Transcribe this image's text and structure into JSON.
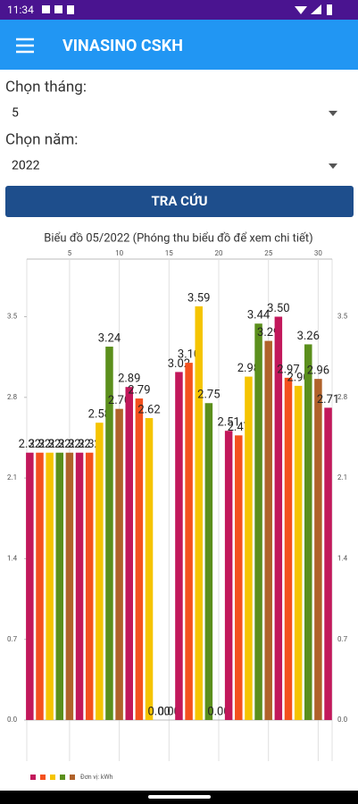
{
  "status_bar": {
    "time": "11:34"
  },
  "app_bar": {
    "title": "VINASINO CSKH"
  },
  "form": {
    "month_label": "Chọn tháng:",
    "month_value": "5",
    "year_label": "Chọn năm:",
    "year_value": "2022",
    "button": "TRA CỨU"
  },
  "chart_data": {
    "type": "bar",
    "title": "Biểu đồ 05/2022 (Phóng thu biểu đồ để xem chi tiết)",
    "x": [
      1,
      2,
      3,
      4,
      5,
      6,
      7,
      8,
      9,
      10,
      11,
      12,
      13,
      14,
      15,
      16,
      17,
      18,
      19,
      20,
      21,
      22,
      23,
      24,
      25,
      26,
      27,
      28,
      29,
      30,
      31
    ],
    "series": [
      {
        "name": "Đơn vị: kWh",
        "colors": [
          "#c2185b",
          "#f4511e",
          "#f5c400",
          "#5b8f1c",
          "#b0622a"
        ],
        "values": [
          2.32,
          2.32,
          2.32,
          2.32,
          2.32,
          2.32,
          2.32,
          2.58,
          3.24,
          2.7,
          2.89,
          2.79,
          2.62,
          0,
          0,
          3.02,
          3.1,
          3.59,
          2.75,
          0,
          2.51,
          2.47,
          2.98,
          3.44,
          3.29,
          3.5,
          2.97,
          2.9,
          3.26,
          2.96,
          2.71
        ],
        "value_labels": [
          "2.32",
          "2.32",
          "2.32",
          "2.32",
          "2.32",
          "2.32",
          "2.32",
          "2.58",
          "3.24",
          "2.70",
          "2.89",
          "2.79",
          "2.62",
          "0.00",
          "0.00",
          "3.02",
          "3.10",
          "3.59",
          "2.75",
          "0.00",
          "2.51",
          "2.47",
          "2.98",
          "3.44",
          "3.29",
          "3.50",
          "2.97",
          "2.90",
          "3.26",
          "2.96",
          "2.71"
        ]
      }
    ],
    "xlim": [
      0.7,
      31.4
    ],
    "xticks": [
      5,
      10,
      15,
      20,
      25,
      30
    ],
    "ylim": [
      0,
      4
    ],
    "yticks": [
      {
        "value": 0,
        "label": "0.0"
      },
      0.7,
      1.4,
      2.1,
      2.8,
      3.5
    ],
    "grid": true
  }
}
